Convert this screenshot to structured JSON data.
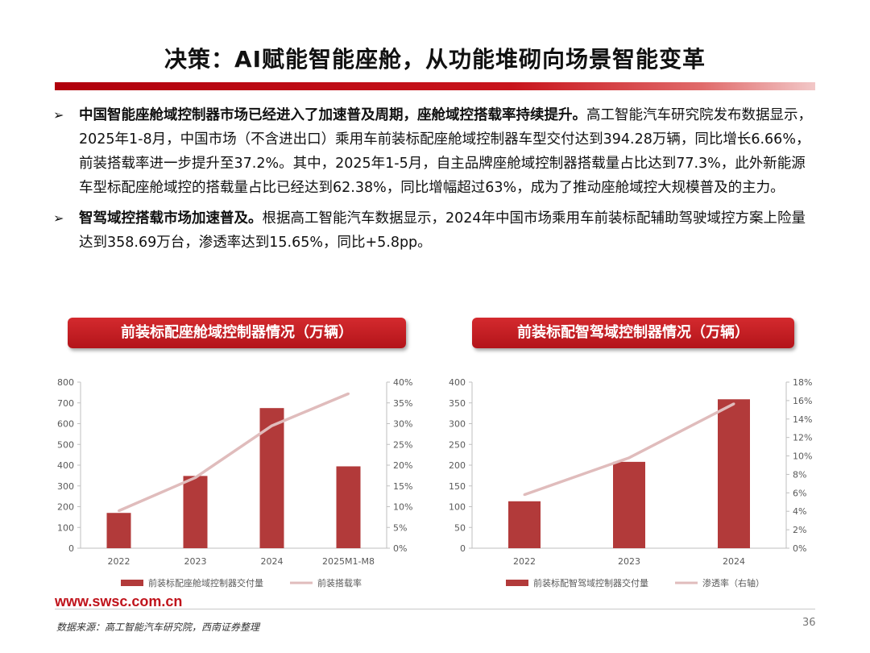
{
  "title": "决策：AI赋能智能座舱，从功能堆砌向场景智能变革",
  "bullets": [
    {
      "bold": "中国智能座舱域控制器市场已经进入了加速普及周期，座舱域控搭载率持续提升。",
      "text": "高工智能汽车研究院发布数据显示，2025年1-8月，中国市场（不含进出口）乘用车前装标配座舱域控制器车型交付达到394.28万辆，同比增长6.66%，前装搭载率进一步提升至37.2%。其中，2025年1-5月，自主品牌座舱域控制器搭载量占比达到77.3%，此外新能源车型标配座舱域控的搭载量占比已经达到62.38%，同比增幅超过63%，成为了推动座舱域控大规模普及的主力。"
    },
    {
      "bold": "智驾域控搭载市场加速普及。",
      "text": "根据高工智能汽车数据显示，2024年中国市场乘用车前装标配辅助驾驶域控方案上险量达到358.69万台，渗透率达到15.65%，同比+5.8pp。"
    }
  ],
  "chart1_title": "前装标配座舱域控制器情况（万辆）",
  "chart2_title": "前装标配智驾域控制器情况（万辆）",
  "colors": {
    "bar": "#b23a3a",
    "line": "#e0bcbc",
    "accent": "#c0141c"
  },
  "chart_data": [
    {
      "type": "bar",
      "categories": [
        "2022",
        "2023",
        "2024",
        "2025M1-M8"
      ],
      "series": [
        {
          "name": "前装标配座舱域控制器交付量",
          "type": "bar",
          "axis": "left",
          "values": [
            170,
            348,
            675,
            394.28
          ]
        },
        {
          "name": "前装搭载率",
          "type": "line",
          "axis": "right",
          "values": [
            0.09,
            0.17,
            0.295,
            0.372
          ]
        }
      ],
      "yticks_left": [
        "800",
        "700",
        "600",
        "500",
        "400",
        "300",
        "200",
        "100",
        "0"
      ],
      "yticks_right": [
        "40%",
        "35%",
        "30%",
        "25%",
        "20%",
        "15%",
        "10%",
        "5%",
        "0%"
      ],
      "ylim_left": [
        0,
        800
      ],
      "ylim_right": [
        0,
        0.4
      ],
      "legend_position": "bottom",
      "grid": false
    },
    {
      "type": "bar",
      "categories": [
        "2022",
        "2023",
        "2024"
      ],
      "series": [
        {
          "name": "前装标配智驾域控制器交付量",
          "type": "bar",
          "axis": "left",
          "values": [
            113,
            208,
            358.69
          ]
        },
        {
          "name": "渗透率（右轴）",
          "type": "line",
          "axis": "right",
          "values": [
            0.058,
            0.098,
            0.1565
          ]
        }
      ],
      "yticks_left": [
        "400",
        "350",
        "300",
        "250",
        "200",
        "150",
        "100",
        "50",
        "0"
      ],
      "yticks_right": [
        "18%",
        "16%",
        "14%",
        "12%",
        "10%",
        "8%",
        "6%",
        "4%",
        "2%",
        "0%"
      ],
      "ylim_left": [
        0,
        400
      ],
      "ylim_right": [
        0,
        0.18
      ],
      "legend_position": "bottom",
      "grid": false
    }
  ],
  "footer": {
    "site": "www.swsc.com.cn",
    "source": "数据来源：高工智能汽车研究院，西南证券整理",
    "page": "36"
  }
}
